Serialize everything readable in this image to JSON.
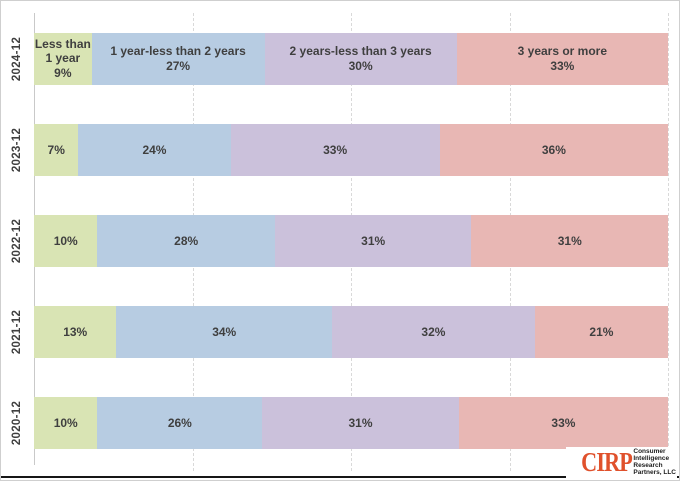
{
  "chart_data": {
    "type": "bar",
    "variant": "horizontal-stacked-percent",
    "title": "",
    "xlabel": "",
    "ylabel": "",
    "xlim": [
      0,
      100
    ],
    "grid": "dashed-vertical",
    "gridlines_pct": [
      25,
      50,
      75,
      100
    ],
    "legend": "none",
    "categories": [
      "2024-12",
      "2023-12",
      "2022-12",
      "2021-12",
      "2020-12"
    ],
    "series": [
      {
        "name": "Less than 1 year",
        "color": "#D9E4B4",
        "values": [
          9,
          7,
          10,
          13,
          10
        ]
      },
      {
        "name": "1 year-less than 2 years",
        "color": "#B7CCE2",
        "values": [
          27,
          24,
          28,
          34,
          26
        ]
      },
      {
        "name": "2 years-less than 3 years",
        "color": "#CBC1DB",
        "values": [
          30,
          33,
          31,
          32,
          31
        ]
      },
      {
        "name": "3 years or more",
        "color": "#E8B7B4",
        "values": [
          33,
          36,
          31,
          21,
          33
        ]
      }
    ],
    "rows": [
      {
        "year": "2024-12",
        "segments": [
          {
            "value": 9,
            "label_lines": [
              "Less than",
              "1 year",
              "9%"
            ]
          },
          {
            "value": 27,
            "label_lines": [
              "1 year-less than 2 years",
              "27%"
            ]
          },
          {
            "value": 30,
            "label_lines": [
              "2 years-less than 3 years",
              "30%"
            ]
          },
          {
            "value": 33,
            "label_lines": [
              "3 years or more",
              "33%"
            ]
          }
        ]
      },
      {
        "year": "2023-12",
        "segments": [
          {
            "value": 7,
            "label_lines": [
              "7%"
            ]
          },
          {
            "value": 24,
            "label_lines": [
              "24%"
            ]
          },
          {
            "value": 33,
            "label_lines": [
              "33%"
            ]
          },
          {
            "value": 36,
            "label_lines": [
              "36%"
            ]
          }
        ]
      },
      {
        "year": "2022-12",
        "segments": [
          {
            "value": 10,
            "label_lines": [
              "10%"
            ]
          },
          {
            "value": 28,
            "label_lines": [
              "28%"
            ]
          },
          {
            "value": 31,
            "label_lines": [
              "31%"
            ]
          },
          {
            "value": 31,
            "label_lines": [
              "31%"
            ]
          }
        ]
      },
      {
        "year": "2021-12",
        "segments": [
          {
            "value": 13,
            "label_lines": [
              "13%"
            ]
          },
          {
            "value": 34,
            "label_lines": [
              "34%"
            ]
          },
          {
            "value": 32,
            "label_lines": [
              "32%"
            ]
          },
          {
            "value": 21,
            "label_lines": [
              "21%"
            ]
          }
        ]
      },
      {
        "year": "2020-12",
        "segments": [
          {
            "value": 10,
            "label_lines": [
              "10%"
            ]
          },
          {
            "value": 26,
            "label_lines": [
              "26%"
            ]
          },
          {
            "value": 31,
            "label_lines": [
              "31%"
            ]
          },
          {
            "value": 33,
            "label_lines": [
              "33%"
            ]
          }
        ]
      }
    ]
  },
  "colors": {
    "text": "#3F3F3F",
    "gridline": "#D9D9D9",
    "axis_line": "#C9C9C9",
    "border": "#CFCFCF",
    "bottom_rule": "#161616",
    "logo_orange": "#E0512C"
  },
  "logo": {
    "wordmark": "CIRP",
    "lines": [
      "Consumer",
      "Intelligence",
      "Research",
      "Partners, LLC"
    ]
  }
}
